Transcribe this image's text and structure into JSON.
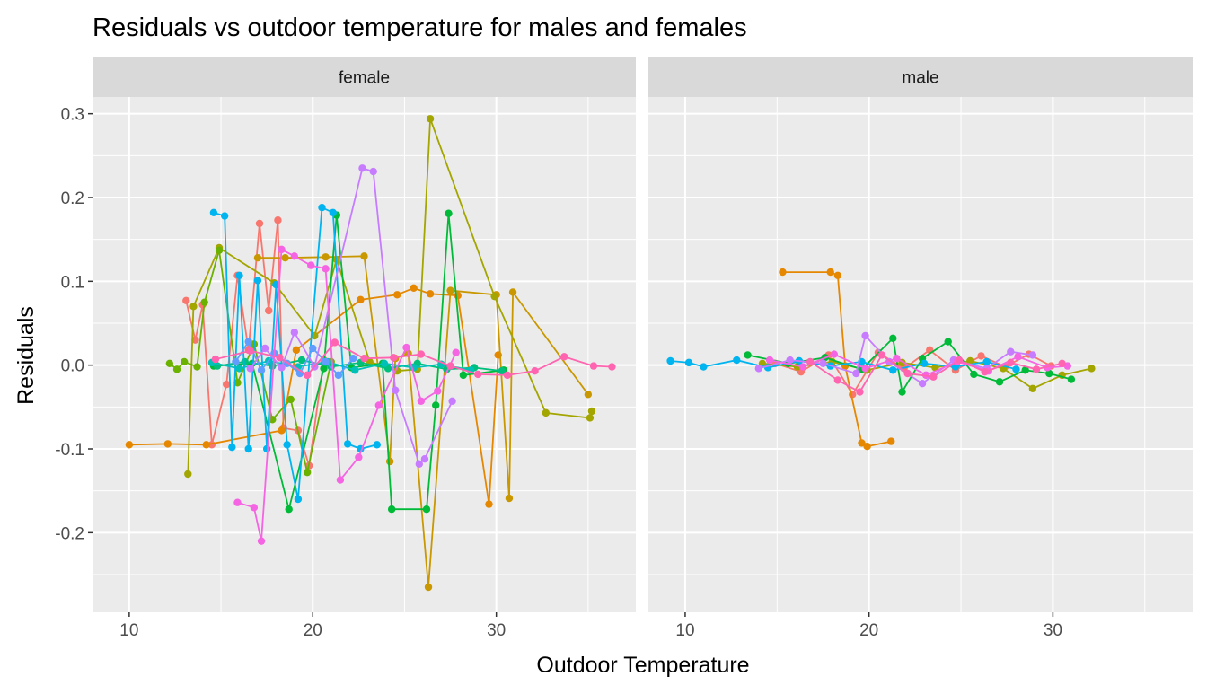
{
  "chart_data": {
    "type": "line",
    "title": "Residuals vs outdoor temperature for males and females",
    "xlabel": "Outdoor Temperature",
    "ylabel": "Residuals",
    "xlim": [
      8,
      37.6
    ],
    "ylim": [
      -0.295,
      0.32
    ],
    "x_ticks": [
      10,
      20,
      30
    ],
    "x_tick_labels": [
      "10",
      "20",
      "30"
    ],
    "x_minor_ticks": [
      15,
      25,
      35
    ],
    "y_ticks": [
      -0.2,
      -0.1,
      0.0,
      0.1,
      0.2,
      0.3
    ],
    "y_tick_labels": [
      "-0.2",
      "-0.1",
      "0.0",
      "0.1",
      "0.2",
      "0.3"
    ],
    "y_minor_ticks": [
      -0.25,
      -0.15,
      -0.05,
      0.05,
      0.15,
      0.25
    ],
    "grid": true,
    "legend": "none",
    "panel_background": "#EBEBEB",
    "strip_background": "#D9D9D9",
    "facets": [
      {
        "label": "female",
        "series": [
          {
            "color": "#F8766D",
            "x": [
              13.1,
              13.6,
              14.0,
              14.5,
              15.3,
              15.9,
              16.5,
              17.1,
              17.6,
              18.1,
              18.4,
              19.2,
              19.8,
              20.6
            ],
            "y": [
              0.077,
              0.03,
              0.072,
              -0.095,
              -0.023,
              0.107,
              0.018,
              0.169,
              0.065,
              0.173,
              -0.075,
              -0.078,
              -0.12,
              0.006
            ]
          },
          {
            "color": "#E58700",
            "x": [
              10.0,
              12.1,
              14.2,
              18.3,
              19.1,
              22.6,
              24.6,
              25.5,
              26.4,
              27.9,
              29.6,
              30.1
            ],
            "y": [
              -0.095,
              -0.094,
              -0.095,
              -0.078,
              0.018,
              0.078,
              0.084,
              0.092,
              0.085,
              0.083,
              -0.166,
              0.012
            ]
          },
          {
            "color": "#C99800",
            "x": [
              17.0,
              18.5,
              20.7,
              22.8,
              24.2,
              24.5,
              25.2,
              26.3,
              27.5,
              30.0,
              30.7,
              30.9,
              35.0
            ],
            "y": [
              0.128,
              0.128,
              0.129,
              0.13,
              -0.115,
              0.008,
              0.014,
              -0.265,
              0.089,
              0.084,
              -0.159,
              0.087,
              -0.035
            ]
          },
          {
            "color": "#A3A500",
            "x": [
              13.2,
              13.5,
              14.9,
              17.9,
              20.1,
              21.3,
              23.1,
              24.6,
              25.7,
              26.4,
              29.9,
              32.7,
              35.1,
              35.2
            ],
            "y": [
              -0.13,
              0.07,
              0.14,
              0.098,
              0.035,
              0.126,
              0.004,
              -0.007,
              -0.005,
              0.294,
              0.082,
              -0.057,
              -0.063,
              -0.055
            ]
          },
          {
            "color": "#6BB100",
            "x": [
              12.2,
              12.6,
              13.0,
              13.7,
              14.1,
              14.9,
              15.9,
              16.8,
              17.8,
              18.8,
              19.7,
              21.0
            ],
            "y": [
              0.002,
              -0.005,
              0.004,
              -0.002,
              0.075,
              0.137,
              -0.021,
              0.025,
              -0.065,
              -0.041,
              -0.128,
              0.004
            ]
          },
          {
            "color": "#00BA38",
            "x": [
              14.6,
              16.7,
              18.7,
              20.6,
              21.3,
              22.1,
              23.8,
              24.3,
              26.2,
              26.7,
              27.4,
              28.2,
              30.4
            ],
            "y": [
              -0.001,
              0.002,
              -0.172,
              -0.004,
              0.179,
              -0.003,
              0.002,
              -0.172,
              -0.172,
              -0.048,
              0.181,
              -0.012,
              -0.006
            ]
          },
          {
            "color": "#00BF7D",
            "x": [
              14.8,
              16.3,
              17.8,
              19.4,
              21.0,
              22.6,
              24.1,
              25.7,
              27.3,
              28.8,
              30.3
            ],
            "y": [
              -0.001,
              0.004,
              -0.001,
              0.006,
              -0.002,
              0.003,
              -0.004,
              0.002,
              -0.005,
              -0.003,
              -0.007
            ]
          },
          {
            "color": "#00C0B8",
            "x": [
              14.5,
              16.0,
              17.6,
              19.2,
              20.8,
              22.3,
              23.9,
              25.5,
              27.0,
              28.6
            ],
            "y": [
              0.003,
              -0.004,
              0.005,
              -0.002,
              0.004,
              -0.006,
              0.002,
              -0.003,
              0.001,
              -0.006
            ]
          },
          {
            "color": "#00B4EF",
            "x": [
              14.6,
              15.2,
              15.6,
              16.0,
              16.5,
              17.0,
              17.5,
              18.0,
              18.6,
              19.2,
              20.5,
              21.1,
              21.9,
              22.6,
              23.5
            ],
            "y": [
              0.182,
              0.178,
              -0.098,
              0.107,
              -0.1,
              0.101,
              -0.1,
              0.096,
              -0.095,
              -0.16,
              0.188,
              0.182,
              -0.094,
              -0.1,
              -0.095
            ]
          },
          {
            "color": "#619CFF",
            "x": [
              15.8,
              16.5,
              17.2,
              17.9,
              18.6,
              19.3,
              20.0,
              20.7,
              21.4,
              22.2
            ],
            "y": [
              0.004,
              0.028,
              -0.006,
              0.014,
              0.002,
              -0.01,
              0.02,
              0.004,
              -0.012,
              0.008
            ]
          },
          {
            "color": "#C77CFF",
            "x": [
              16.6,
              17.4,
              18.3,
              19.0,
              20.1,
              22.7,
              23.3,
              24.5,
              25.8,
              26.1,
              27.6
            ],
            "y": [
              -0.004,
              0.02,
              -0.003,
              0.039,
              -0.002,
              0.235,
              0.231,
              -0.03,
              -0.118,
              -0.112,
              -0.043
            ]
          },
          {
            "color": "#F564E3",
            "x": [
              15.9,
              16.8,
              17.2,
              18.3,
              19.0,
              19.9,
              20.7,
              21.5,
              22.5,
              23.6,
              25.1,
              25.9,
              26.8,
              27.8
            ],
            "y": [
              -0.164,
              -0.17,
              -0.21,
              0.138,
              0.13,
              0.119,
              0.115,
              -0.137,
              -0.11,
              -0.048,
              0.021,
              -0.043,
              -0.031,
              0.015
            ]
          },
          {
            "color": "#FF64B0",
            "x": [
              14.7,
              16.6,
              18.2,
              19.7,
              21.2,
              22.8,
              24.4,
              25.9,
              27.5,
              29.0,
              30.6,
              32.1,
              33.7,
              35.3,
              36.3
            ],
            "y": [
              0.007,
              0.017,
              0.009,
              -0.012,
              0.027,
              0.008,
              0.009,
              0.013,
              -0.001,
              -0.011,
              -0.012,
              -0.007,
              0.01,
              -0.001,
              -0.002
            ]
          }
        ]
      },
      {
        "label": "male",
        "series": [
          {
            "color": "#F8766D",
            "x": [
              14.9,
              16.3,
              17.8,
              19.1,
              20.5,
              21.9,
              23.3,
              24.7,
              26.1,
              27.4,
              28.7,
              29.9
            ],
            "y": [
              0.002,
              -0.008,
              0.012,
              -0.035,
              0.015,
              -0.004,
              0.018,
              -0.006,
              0.011,
              -0.002,
              0.013,
              -0.001
            ]
          },
          {
            "color": "#E58700",
            "x": [
              15.3,
              17.9,
              18.3,
              18.7,
              19.6,
              19.9,
              21.2
            ],
            "y": [
              0.111,
              0.111,
              0.107,
              -0.001,
              -0.093,
              -0.097,
              -0.091
            ]
          },
          {
            "color": "#A3A500",
            "x": [
              14.2,
              16.1,
              18.0,
              19.9,
              21.8,
              23.6,
              25.5,
              27.3,
              28.9,
              30.5,
              32.1
            ],
            "y": [
              0.002,
              -0.002,
              0.004,
              -0.006,
              0.003,
              -0.003,
              0.005,
              -0.004,
              -0.028,
              -0.012,
              -0.004
            ]
          },
          {
            "color": "#00BA38",
            "x": [
              13.4,
              15.6,
              17.6,
              19.6,
              21.3,
              21.8,
              22.9,
              24.3,
              25.7,
              27.1,
              28.5,
              29.8,
              31.0
            ],
            "y": [
              0.012,
              0.002,
              0.009,
              -0.005,
              0.032,
              -0.032,
              0.008,
              0.028,
              -0.011,
              -0.02,
              -0.006,
              -0.01,
              -0.017
            ]
          },
          {
            "color": "#00B4EF",
            "x": [
              9.2,
              10.2,
              11.0,
              12.8,
              14.5,
              16.2,
              17.9,
              19.6,
              21.3,
              23.0,
              24.7,
              26.4,
              28.0
            ],
            "y": [
              0.005,
              0.003,
              -0.002,
              0.006,
              -0.003,
              0.005,
              -0.001,
              0.004,
              -0.006,
              0.002,
              -0.002,
              0.004,
              -0.005
            ]
          },
          {
            "color": "#C77CFF",
            "x": [
              14.0,
              15.7,
              17.5,
              19.3,
              19.8,
              21.1,
              22.9,
              24.6,
              26.4,
              27.7,
              28.9
            ],
            "y": [
              -0.004,
              0.006,
              0.002,
              -0.01,
              0.035,
              0.004,
              -0.022,
              0.006,
              -0.004,
              0.016,
              0.012
            ]
          },
          {
            "color": "#F564E3",
            "x": [
              14.6,
              16.4,
              18.1,
              19.8,
              21.5,
              23.1,
              24.8,
              26.5,
              28.1,
              29.7,
              30.8
            ],
            "y": [
              0.006,
              -0.002,
              0.013,
              -0.004,
              0.008,
              -0.012,
              0.004,
              -0.007,
              0.01,
              -0.003,
              -0.001
            ]
          },
          {
            "color": "#FF64B0",
            "x": [
              16.8,
              18.3,
              19.5,
              20.7,
              22.1,
              23.5,
              24.9,
              26.3,
              27.7,
              29.1,
              30.5
            ],
            "y": [
              0.004,
              -0.018,
              -0.032,
              0.012,
              -0.01,
              -0.014,
              0.006,
              -0.008,
              0.003,
              -0.005,
              0.002
            ]
          }
        ]
      }
    ]
  }
}
